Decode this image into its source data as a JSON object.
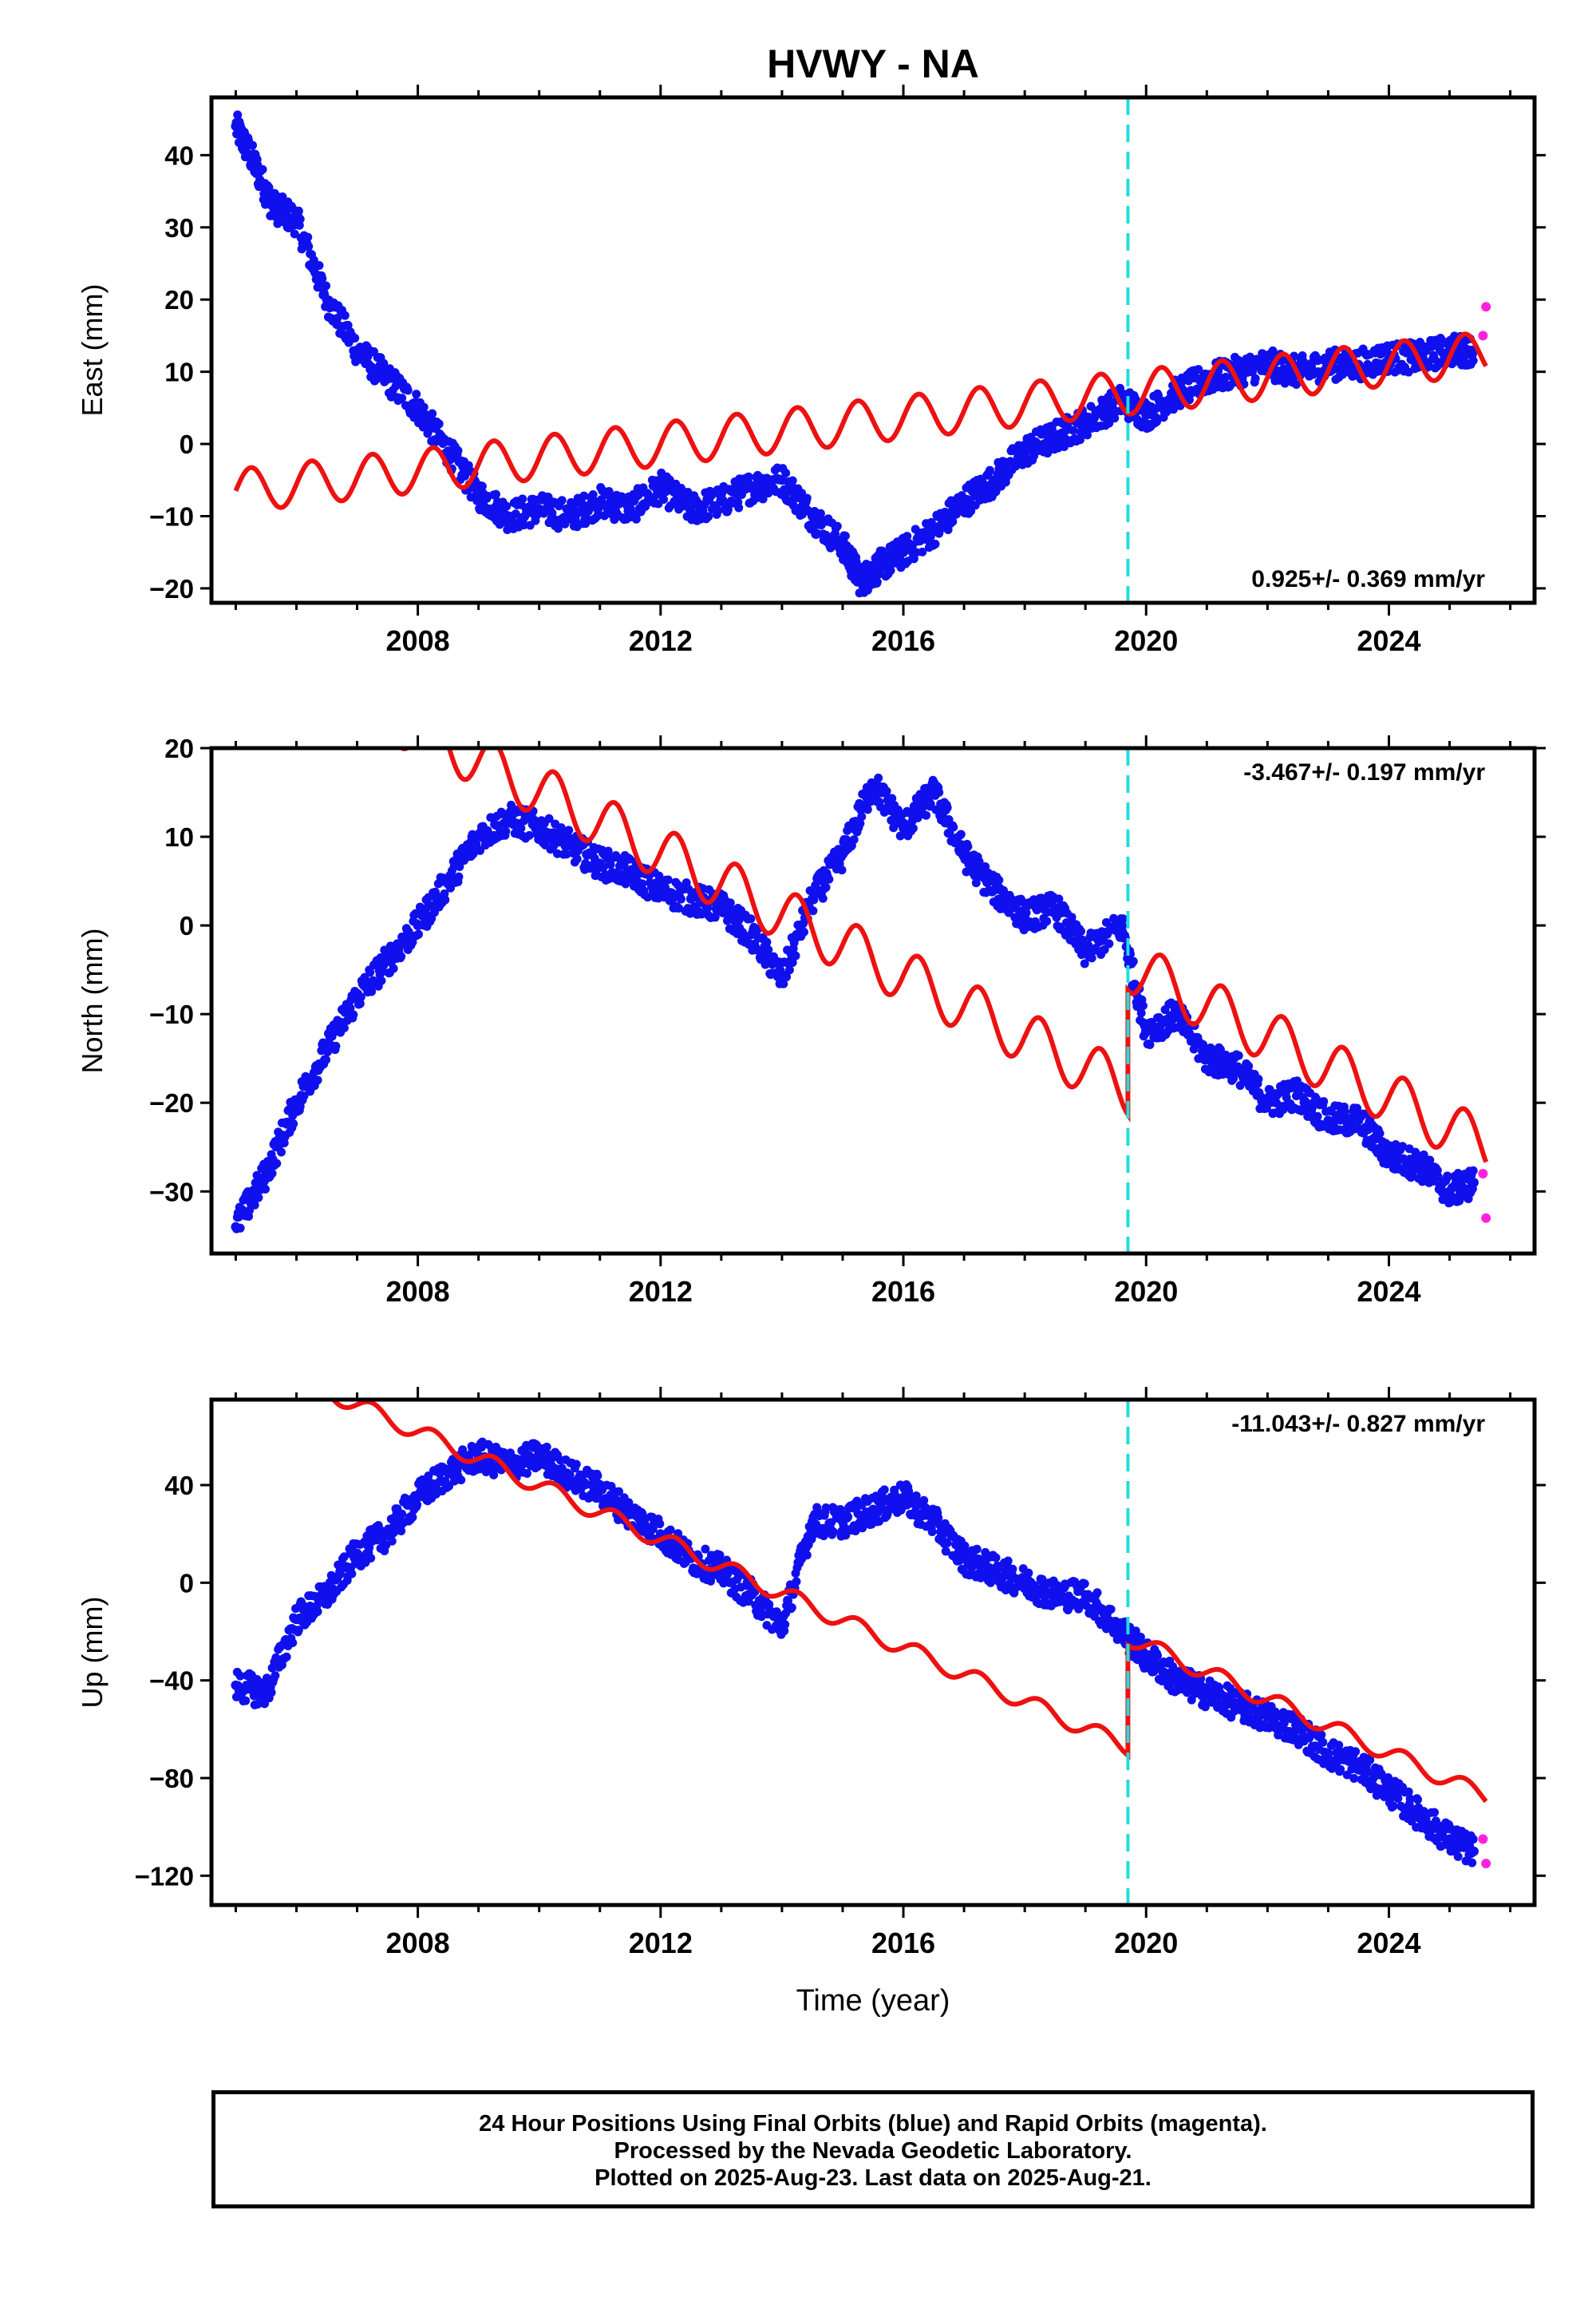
{
  "title": "HVWY - NA",
  "xlabel": "Time (year)",
  "x_tick_labels": [
    "2008",
    "2012",
    "2016",
    "2020",
    "2024"
  ],
  "colors": {
    "final": "#1010ee",
    "rapid": "#ff22dd",
    "model": "#ee1111",
    "equipment_change": "#22dddd"
  },
  "event_line_year": 2019.7,
  "footer": {
    "line1": "24 Hour Positions Using Final Orbits (blue) and Rapid Orbits (magenta).",
    "line2": "Processed by the Nevada Geodetic Laboratory.",
    "line3": "Plotted on 2025-Aug-23. Last data on 2025-Aug-21."
  },
  "chart_data": [
    {
      "type": "scatter",
      "component": "east",
      "ylabel": "East (mm)",
      "rate_label": "0.925+/- 0.369 mm/yr",
      "rate_position": "bottom-right",
      "xlim": [
        2004.6,
        2026.4
      ],
      "ylim": [
        -22,
        48
      ],
      "y_ticks": [
        -20,
        -10,
        0,
        10,
        20,
        30,
        40
      ],
      "y_tick_labels": [
        "−20",
        "−10",
        "0",
        "10",
        "20",
        "30",
        "40"
      ],
      "observed": {
        "x": [
          2005.0,
          2005.3,
          2005.6,
          2006.0,
          2006.5,
          2007.0,
          2007.5,
          2008.0,
          2008.5,
          2009.0,
          2009.5,
          2010.0,
          2010.5,
          2011.0,
          2011.5,
          2012.0,
          2012.5,
          2013.0,
          2013.5,
          2014.0,
          2014.5,
          2015.0,
          2015.3,
          2015.6,
          2016.0,
          2016.5,
          2017.0,
          2017.5,
          2018.0,
          2018.5,
          2019.0,
          2019.6,
          2020.0,
          2020.5,
          2021.0,
          2021.5,
          2022.0,
          2022.5,
          2023.0,
          2023.5,
          2024.0,
          2024.5,
          2025.0,
          2025.4
        ],
        "y": [
          44,
          39,
          33,
          31,
          20,
          13,
          9,
          5,
          -1,
          -7,
          -10,
          -9,
          -10,
          -8,
          -9,
          -6,
          -9,
          -8,
          -6,
          -5,
          -10,
          -14,
          -19,
          -17,
          -15,
          -12,
          -8,
          -5,
          -1,
          1,
          3,
          6,
          4,
          7,
          9,
          10,
          11,
          10,
          11,
          11,
          12,
          12,
          13,
          13
        ]
      },
      "rapid": {
        "x": [
          2025.55,
          2025.6
        ],
        "y": [
          15,
          19
        ]
      },
      "model": {
        "rate_mm_per_yr": 0.925,
        "y_at_2005": -6.5,
        "amplitude": 3.0,
        "offset_after_event": 0.0
      }
    },
    {
      "type": "scatter",
      "component": "north",
      "ylabel": "North (mm)",
      "rate_label": "-3.467+/- 0.197 mm/yr",
      "rate_position": "top-right",
      "xlim": [
        2004.6,
        2026.4
      ],
      "ylim": [
        -37,
        20
      ],
      "y_ticks": [
        -30,
        -20,
        -10,
        0,
        10,
        20
      ],
      "y_tick_labels": [
        "−30",
        "−20",
        "−10",
        "0",
        "10",
        "20"
      ],
      "observed": {
        "x": [
          2005.0,
          2005.5,
          2006.0,
          2006.5,
          2007.0,
          2007.5,
          2008.0,
          2008.5,
          2009.0,
          2009.5,
          2010.0,
          2010.5,
          2011.0,
          2011.5,
          2012.0,
          2012.5,
          2013.0,
          2013.5,
          2014.0,
          2014.5,
          2015.0,
          2015.5,
          2016.0,
          2016.5,
          2017.0,
          2017.5,
          2018.0,
          2018.5,
          2019.0,
          2019.6,
          2020.0,
          2020.5,
          2021.0,
          2021.5,
          2022.0,
          2022.5,
          2023.0,
          2023.5,
          2024.0,
          2024.5,
          2025.0,
          2025.4
        ],
        "y": [
          -34,
          -28,
          -20,
          -14,
          -8,
          -4,
          0,
          5,
          10,
          12,
          11,
          9,
          7,
          6,
          4,
          3,
          2,
          -1,
          -6,
          3,
          8,
          16,
          11,
          15,
          8,
          4,
          1,
          2,
          -3,
          0,
          -12,
          -10,
          -15,
          -16,
          -20,
          -19,
          -22,
          -22,
          -26,
          -27,
          -30,
          -29
        ]
      },
      "rapid": {
        "x": [
          2025.55,
          2025.6
        ],
        "y": [
          -28,
          -33
        ]
      },
      "model": {
        "rate_mm_per_yr": -3.467,
        "y_at_2005": 32.5,
        "amplitude": 3.0,
        "offset_after_event": 14.0
      }
    },
    {
      "type": "scatter",
      "component": "up",
      "ylabel": "Up (mm)",
      "rate_label": "-11.043+/- 0.827 mm/yr",
      "rate_position": "top-right",
      "xlim": [
        2004.6,
        2026.4
      ],
      "ylim": [
        -132,
        75
      ],
      "y_ticks": [
        -120,
        -80,
        -40,
        0,
        40
      ],
      "y_tick_labels": [
        "−120",
        "−80",
        "−40",
        "0",
        "40"
      ],
      "observed": {
        "x": [
          2005.0,
          2005.5,
          2006.0,
          2006.5,
          2007.0,
          2007.5,
          2008.0,
          2008.5,
          2009.0,
          2009.5,
          2010.0,
          2010.5,
          2011.0,
          2011.5,
          2012.0,
          2012.5,
          2013.0,
          2013.5,
          2014.0,
          2014.5,
          2015.0,
          2015.5,
          2016.0,
          2016.5,
          2017.0,
          2017.5,
          2018.0,
          2018.5,
          2019.0,
          2019.6,
          2020.0,
          2020.5,
          2021.0,
          2021.5,
          2022.0,
          2022.5,
          2023.0,
          2023.5,
          2024.0,
          2024.5,
          2025.0,
          2025.4
        ],
        "y": [
          -42,
          -45,
          -15,
          -5,
          12,
          20,
          35,
          45,
          52,
          48,
          52,
          44,
          38,
          28,
          20,
          10,
          5,
          -5,
          -18,
          25,
          25,
          30,
          35,
          25,
          10,
          5,
          0,
          -5,
          -5,
          -20,
          -30,
          -40,
          -45,
          -50,
          -55,
          -60,
          -70,
          -75,
          -85,
          -95,
          -105,
          -110
        ]
      },
      "rapid": {
        "x": [
          2025.55,
          2025.6
        ],
        "y": [
          -105,
          -115
        ]
      },
      "model": {
        "rate_mm_per_yr": -11.043,
        "y_at_2005": 95.0,
        "amplitude": 3.5,
        "offset_after_event": 45.0
      }
    }
  ]
}
